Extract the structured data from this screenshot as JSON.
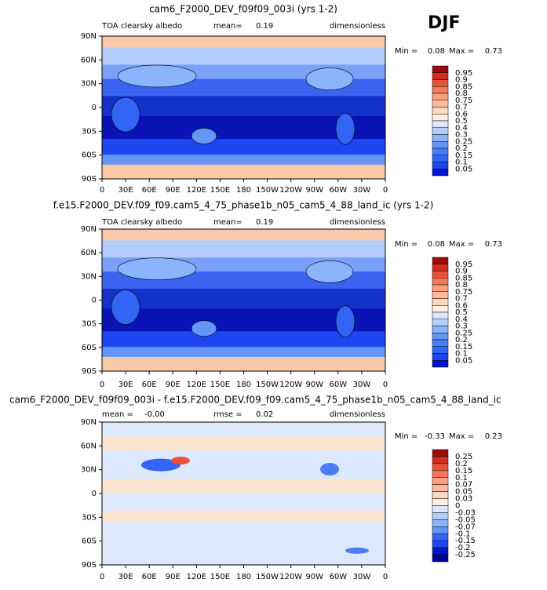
{
  "header": {
    "season": "DJF"
  },
  "panels": [
    {
      "title": "cam6_F2000_DEV_f09f09_003i (yrs 1-2)",
      "left_label": "TOA clearsky albedo",
      "stat_label": "mean=",
      "stat_value": 0.19,
      "units": "dimensionless",
      "min_label": "Min =",
      "min": 0.08,
      "max_label": "Max =",
      "max": 0.73,
      "yticks": [
        "90N",
        "60N",
        "30N",
        "0",
        "30S",
        "60S",
        "90S"
      ],
      "xticks": [
        "0",
        "30E",
        "60E",
        "90E",
        "120E",
        "150E",
        "180",
        "150W",
        "120W",
        "90W",
        "60W",
        "30W",
        "0"
      ],
      "colorbar": {
        "labels": [
          0.95,
          0.9,
          0.85,
          0.8,
          0.75,
          0.7,
          0.6,
          0.5,
          0.4,
          0.3,
          0.25,
          0.2,
          0.15,
          0.1,
          0.05
        ],
        "colors": [
          "#a00a0a",
          "#d22d1e",
          "#eb503c",
          "#f5785a",
          "#fa9f7a",
          "#fcbc9c",
          "#fdd9bf",
          "#fff0e0",
          "#dce8fe",
          "#b4cdfd",
          "#8cb4fc",
          "#6496fa",
          "#4b7df8",
          "#3264f5",
          "#1e46f0",
          "#0014c8"
        ]
      }
    },
    {
      "title": "f.e15.F2000_DEV.f09_f09.cam5_4_75_phase1b_n05_cam5_4_88_land_ic (yrs 1-2)",
      "left_label": "TOA clearsky albedo",
      "stat_label": "mean=",
      "stat_value": 0.19,
      "units": "dimensionless",
      "min_label": "Min =",
      "min": 0.08,
      "max_label": "Max =",
      "max": 0.73,
      "yticks": [
        "90N",
        "60N",
        "30N",
        "0",
        "30S",
        "60S",
        "90S"
      ],
      "xticks": [
        "0",
        "30E",
        "60E",
        "90E",
        "120E",
        "150E",
        "180",
        "150W",
        "120W",
        "90W",
        "60W",
        "30W",
        "0"
      ],
      "colorbar": {
        "labels": [
          0.95,
          0.9,
          0.85,
          0.8,
          0.75,
          0.7,
          0.6,
          0.5,
          0.4,
          0.3,
          0.25,
          0.2,
          0.15,
          0.1,
          0.05
        ],
        "colors": [
          "#a00a0a",
          "#d22d1e",
          "#eb503c",
          "#f5785a",
          "#fa9f7a",
          "#fcbc9c",
          "#fdd9bf",
          "#fff0e0",
          "#dce8fe",
          "#b4cdfd",
          "#8cb4fc",
          "#6496fa",
          "#4b7df8",
          "#3264f5",
          "#1e46f0",
          "#0014c8"
        ]
      }
    },
    {
      "title": "cam6_F2000_DEV_f09f09_003i - f.e15.F2000_DEV.f09_f09.cam5_4_75_phase1b_n05_cam5_4_88_land_ic",
      "left_label": "mean =",
      "left_value": "-0.00",
      "stat_label": "rmse =",
      "stat_value": 0.02,
      "units": "dimensionless",
      "min_label": "Min =",
      "min": -0.33,
      "max_label": "Max =",
      "max": 0.23,
      "yticks": [
        "90N",
        "60N",
        "30N",
        "0",
        "30S",
        "60S",
        "90S"
      ],
      "xticks": [
        "0",
        "30E",
        "60E",
        "90E",
        "120E",
        "150E",
        "180",
        "150W",
        "120W",
        "90W",
        "60W",
        "30W",
        "0"
      ],
      "colorbar": {
        "labels": [
          0.25,
          0.2,
          0.15,
          0.1,
          0.07,
          0.05,
          0.03,
          0,
          -0.03,
          -0.05,
          -0.07,
          -0.1,
          -0.15,
          -0.2,
          -0.25
        ],
        "colors": [
          "#a00a0a",
          "#d22d1e",
          "#eb503c",
          "#f5785a",
          "#fa9f7a",
          "#fcbc9c",
          "#fdd9bf",
          "#fff0e0",
          "#dce8fe",
          "#b4cdfd",
          "#8cb4fc",
          "#6496fa",
          "#3264f5",
          "#1e46f0",
          "#0014c8",
          "#00008b"
        ]
      }
    }
  ]
}
